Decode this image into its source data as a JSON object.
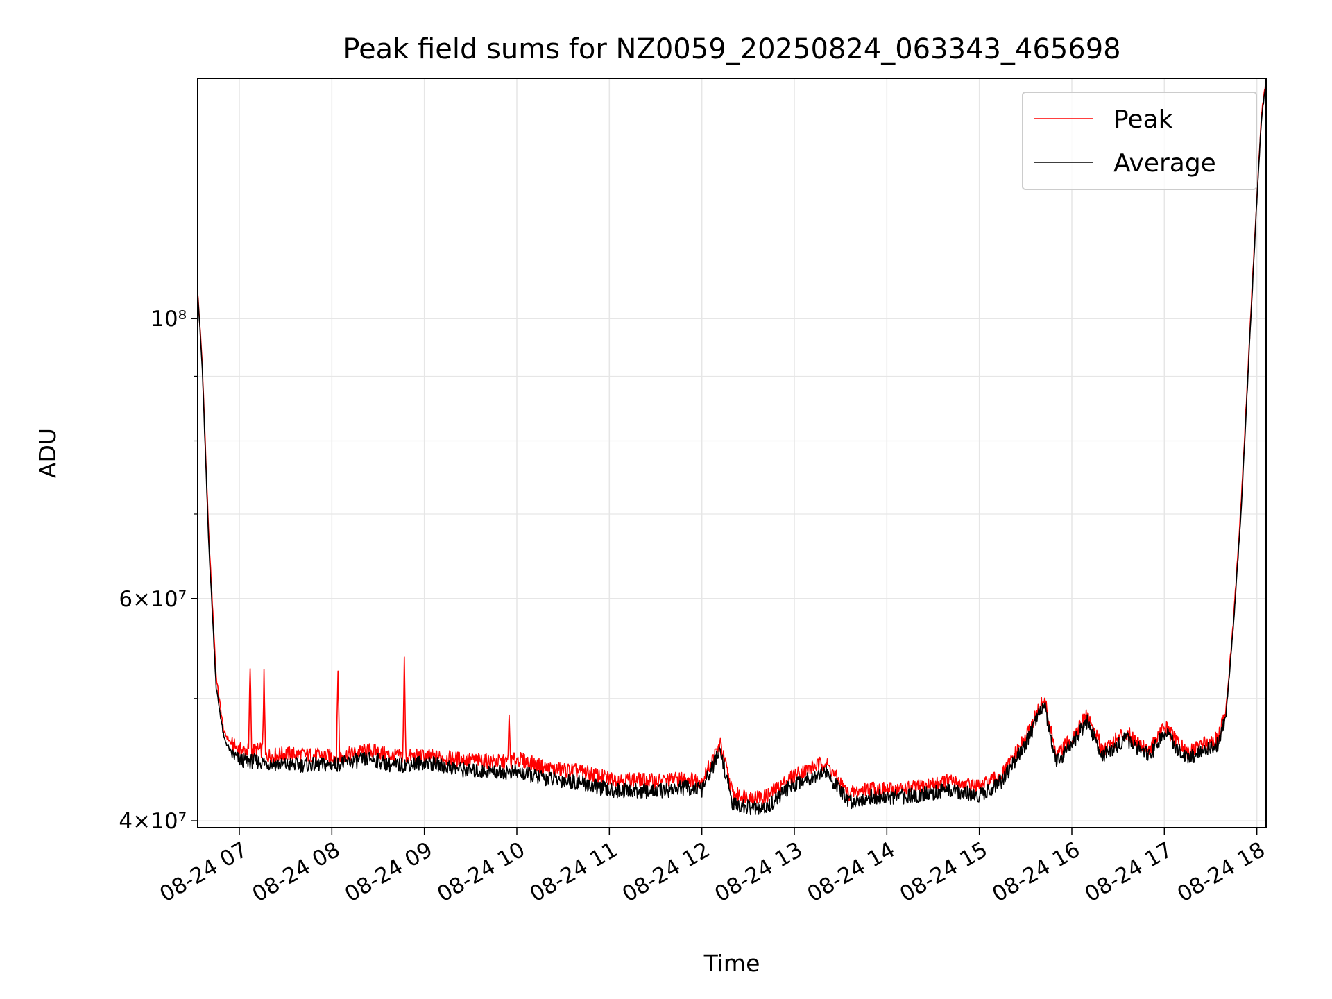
{
  "chart_data": {
    "type": "line",
    "title": "Peak field sums for NZ0059_20250824_063343_465698",
    "xlabel": "Time",
    "ylabel": "ADU",
    "xlim": [
      "2025-08-24 06:33",
      "2025-08-24 18:06"
    ],
    "ylim": [
      39500000,
      155000000
    ],
    "yscale": "log",
    "grid": true,
    "legend_position": "top-right",
    "x_ticks": [
      "08-24 07",
      "08-24 08",
      "08-24 09",
      "08-24 10",
      "08-24 11",
      "08-24 12",
      "08-24 13",
      "08-24 14",
      "08-24 15",
      "08-24 16",
      "08-24 17",
      "08-24 18"
    ],
    "y_ticks": [
      {
        "value": 40000000,
        "label": "4×10⁷"
      },
      {
        "value": 60000000,
        "label": "6×10⁷"
      },
      {
        "value": 100000000,
        "label": "10⁸"
      }
    ],
    "series": [
      {
        "name": "Peak",
        "color": "#ff0000",
        "x": [
          "2025-08-24 06:33",
          "2025-08-24 06:36",
          "2025-08-24 06:40",
          "2025-08-24 06:45",
          "2025-08-24 06:50",
          "2025-08-24 06:55",
          "2025-08-24 07:00",
          "2025-08-24 07:06",
          "2025-08-24 07:07",
          "2025-08-24 07:08",
          "2025-08-24 07:15",
          "2025-08-24 07:16",
          "2025-08-24 07:17",
          "2025-08-24 07:30",
          "2025-08-24 08:00",
          "2025-08-24 08:03",
          "2025-08-24 08:04",
          "2025-08-24 08:05",
          "2025-08-24 08:25",
          "2025-08-24 08:40",
          "2025-08-24 08:46",
          "2025-08-24 08:47",
          "2025-08-24 08:48",
          "2025-08-24 09:00",
          "2025-08-24 09:30",
          "2025-08-24 09:54",
          "2025-08-24 09:55",
          "2025-08-24 09:56",
          "2025-08-24 10:00",
          "2025-08-24 10:20",
          "2025-08-24 10:40",
          "2025-08-24 11:00",
          "2025-08-24 11:30",
          "2025-08-24 11:50",
          "2025-08-24 12:00",
          "2025-08-24 12:12",
          "2025-08-24 12:20",
          "2025-08-24 12:40",
          "2025-08-24 12:50",
          "2025-08-24 13:00",
          "2025-08-24 13:20",
          "2025-08-24 13:35",
          "2025-08-24 13:50",
          "2025-08-24 14:00",
          "2025-08-24 14:20",
          "2025-08-24 14:40",
          "2025-08-24 15:00",
          "2025-08-24 15:15",
          "2025-08-24 15:30",
          "2025-08-24 15:42",
          "2025-08-24 15:50",
          "2025-08-24 16:00",
          "2025-08-24 16:10",
          "2025-08-24 16:20",
          "2025-08-24 16:35",
          "2025-08-24 16:50",
          "2025-08-24 17:00",
          "2025-08-24 17:15",
          "2025-08-24 17:25",
          "2025-08-24 17:35",
          "2025-08-24 17:40",
          "2025-08-24 17:45",
          "2025-08-24 17:50",
          "2025-08-24 17:55",
          "2025-08-24 18:00",
          "2025-08-24 18:03",
          "2025-08-24 18:06"
        ],
        "values": [
          105000000,
          92000000,
          68000000,
          52000000,
          47000000,
          46000000,
          45500000,
          45500000,
          53000000,
          45500000,
          45500000,
          52000000,
          45000000,
          45200000,
          45000000,
          45000000,
          53000000,
          45000000,
          45500000,
          45000000,
          45000000,
          53500000,
          45000000,
          45000000,
          44700000,
          44500000,
          48000000,
          44500000,
          44800000,
          44000000,
          43800000,
          43200000,
          43000000,
          43200000,
          43000000,
          46000000,
          42000000,
          41700000,
          42500000,
          43500000,
          44500000,
          42000000,
          42500000,
          42300000,
          42500000,
          43000000,
          42500000,
          43500000,
          46500000,
          50000000,
          45000000,
          46500000,
          48500000,
          45500000,
          47000000,
          45500000,
          47500000,
          45200000,
          46000000,
          46500000,
          49000000,
          58000000,
          72000000,
          95000000,
          125000000,
          145000000,
          155000000
        ]
      },
      {
        "name": "Average",
        "color": "#000000",
        "x": [
          "2025-08-24 06:33",
          "2025-08-24 06:36",
          "2025-08-24 06:40",
          "2025-08-24 06:45",
          "2025-08-24 06:50",
          "2025-08-24 06:55",
          "2025-08-24 07:00",
          "2025-08-24 07:30",
          "2025-08-24 08:00",
          "2025-08-24 08:25",
          "2025-08-24 08:40",
          "2025-08-24 09:00",
          "2025-08-24 09:30",
          "2025-08-24 10:00",
          "2025-08-24 10:20",
          "2025-08-24 10:40",
          "2025-08-24 11:00",
          "2025-08-24 11:30",
          "2025-08-24 11:50",
          "2025-08-24 12:00",
          "2025-08-24 12:12",
          "2025-08-24 12:20",
          "2025-08-24 12:40",
          "2025-08-24 12:50",
          "2025-08-24 13:00",
          "2025-08-24 13:20",
          "2025-08-24 13:35",
          "2025-08-24 13:50",
          "2025-08-24 14:00",
          "2025-08-24 14:20",
          "2025-08-24 14:40",
          "2025-08-24 15:00",
          "2025-08-24 15:15",
          "2025-08-24 15:30",
          "2025-08-24 15:42",
          "2025-08-24 15:50",
          "2025-08-24 16:00",
          "2025-08-24 16:10",
          "2025-08-24 16:20",
          "2025-08-24 16:35",
          "2025-08-24 16:50",
          "2025-08-24 17:00",
          "2025-08-24 17:15",
          "2025-08-24 17:25",
          "2025-08-24 17:35",
          "2025-08-24 17:40",
          "2025-08-24 17:45",
          "2025-08-24 17:50",
          "2025-08-24 17:55",
          "2025-08-24 18:00",
          "2025-08-24 18:03",
          "2025-08-24 18:06"
        ],
        "values": [
          105000000,
          91000000,
          67000000,
          51000000,
          46500000,
          45200000,
          44700000,
          44300000,
          44300000,
          44800000,
          44200000,
          44500000,
          43800000,
          43700000,
          43200000,
          42900000,
          42300000,
          42200000,
          42500000,
          42300000,
          45500000,
          41200000,
          40800000,
          41800000,
          42800000,
          43800000,
          41400000,
          41800000,
          41700000,
          41900000,
          42300000,
          41900000,
          43000000,
          46000000,
          49500000,
          44500000,
          46000000,
          48000000,
          45000000,
          46500000,
          45000000,
          47000000,
          44700000,
          45500000,
          46000000,
          48500000,
          57500000,
          71000000,
          94000000,
          124000000,
          144000000,
          154000000
        ]
      }
    ]
  }
}
